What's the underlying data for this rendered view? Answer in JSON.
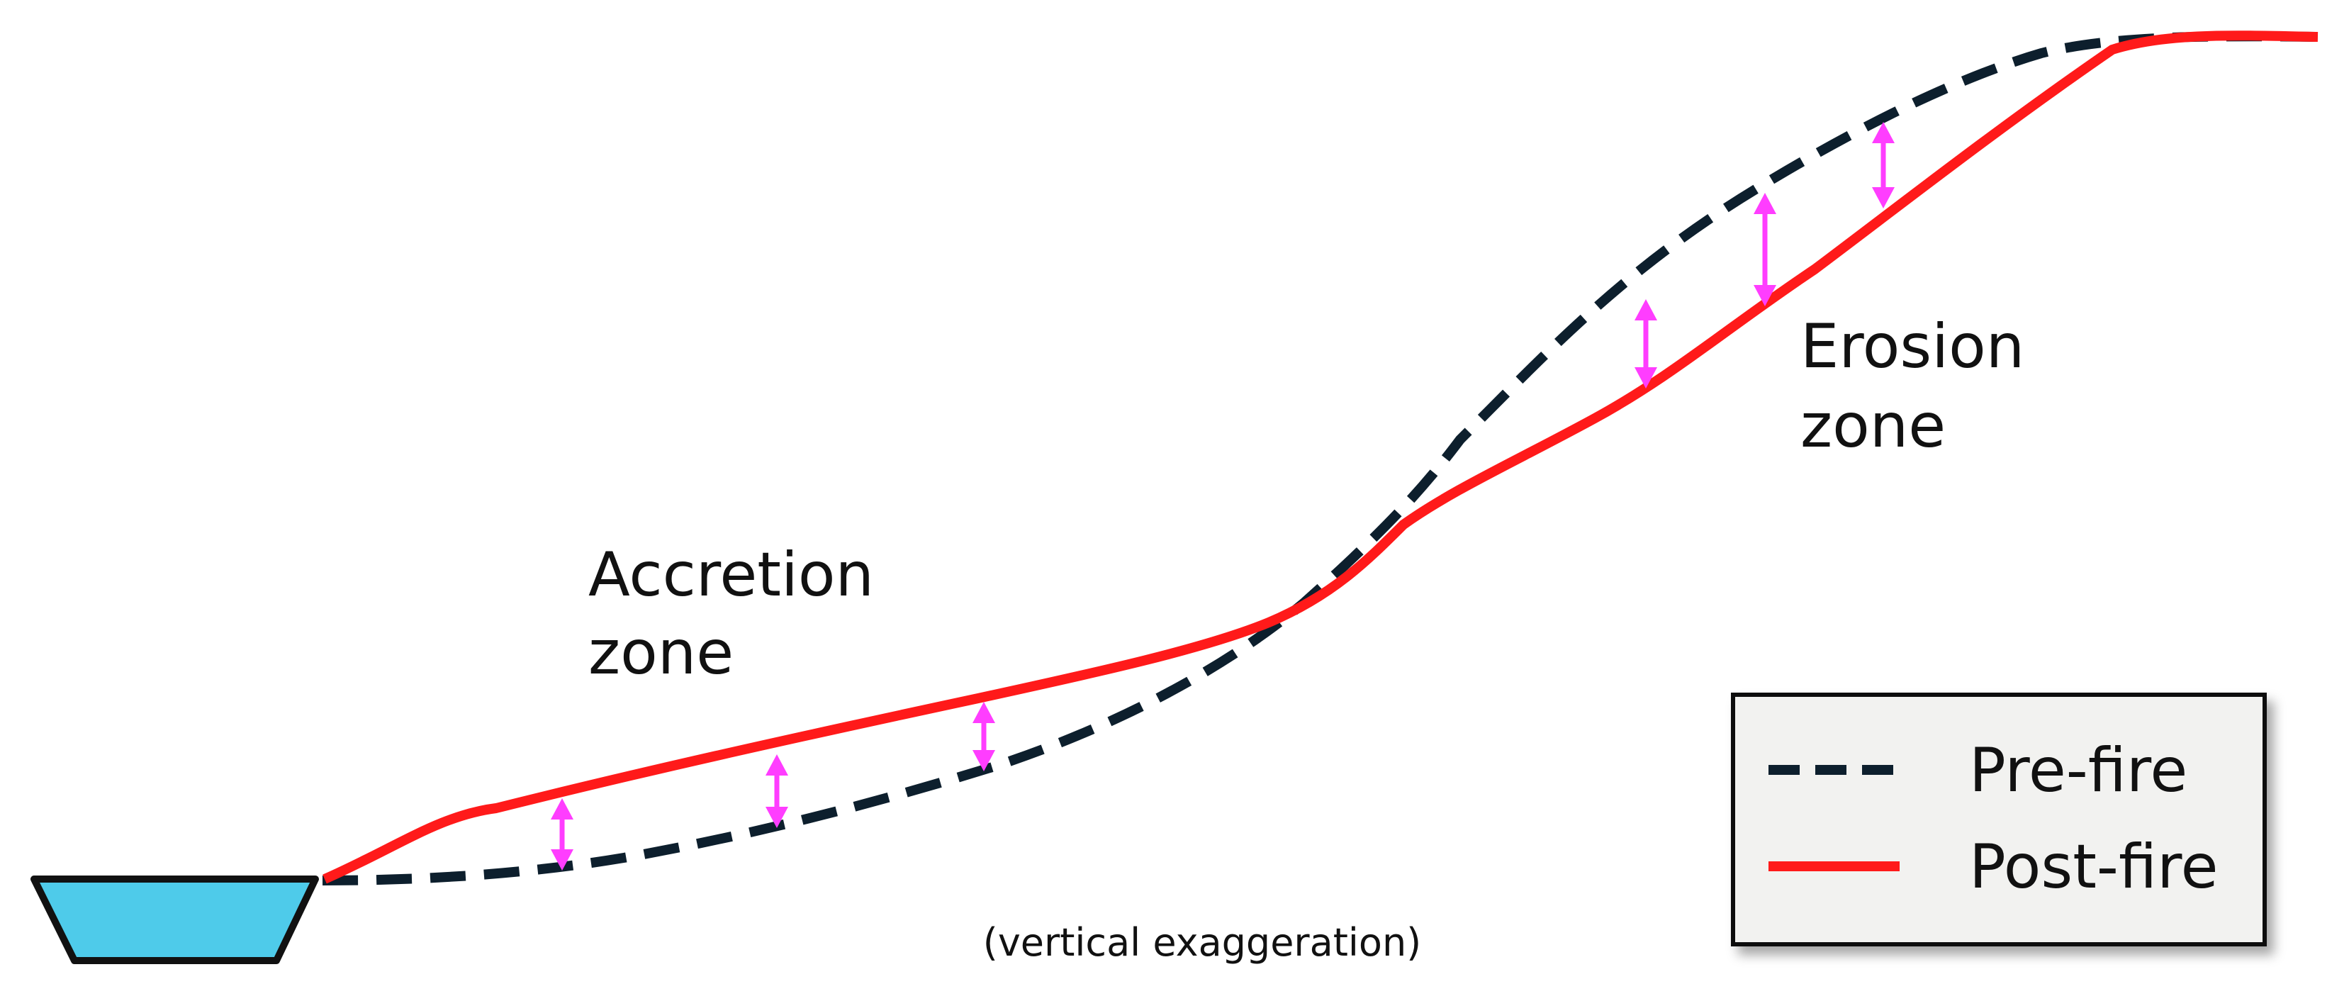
{
  "labels": {
    "accretion_line1": "Accretion",
    "accretion_line2": "zone",
    "erosion_line1": "Erosion",
    "erosion_line2": "zone",
    "caption": "(vertical exaggeration)"
  },
  "legend": {
    "items": [
      {
        "label": "Pre-fire",
        "style": "dashed",
        "color": "#0d1f2d"
      },
      {
        "label": "Post-fire",
        "style": "solid",
        "color": "#ff1a1a"
      }
    ]
  },
  "colors": {
    "pre_fire": "#0d1f2d",
    "post_fire": "#ff1a1a",
    "arrow": "#ff3dff",
    "water": "#4ecbea",
    "legend_bg": "#f2f2f0"
  }
}
